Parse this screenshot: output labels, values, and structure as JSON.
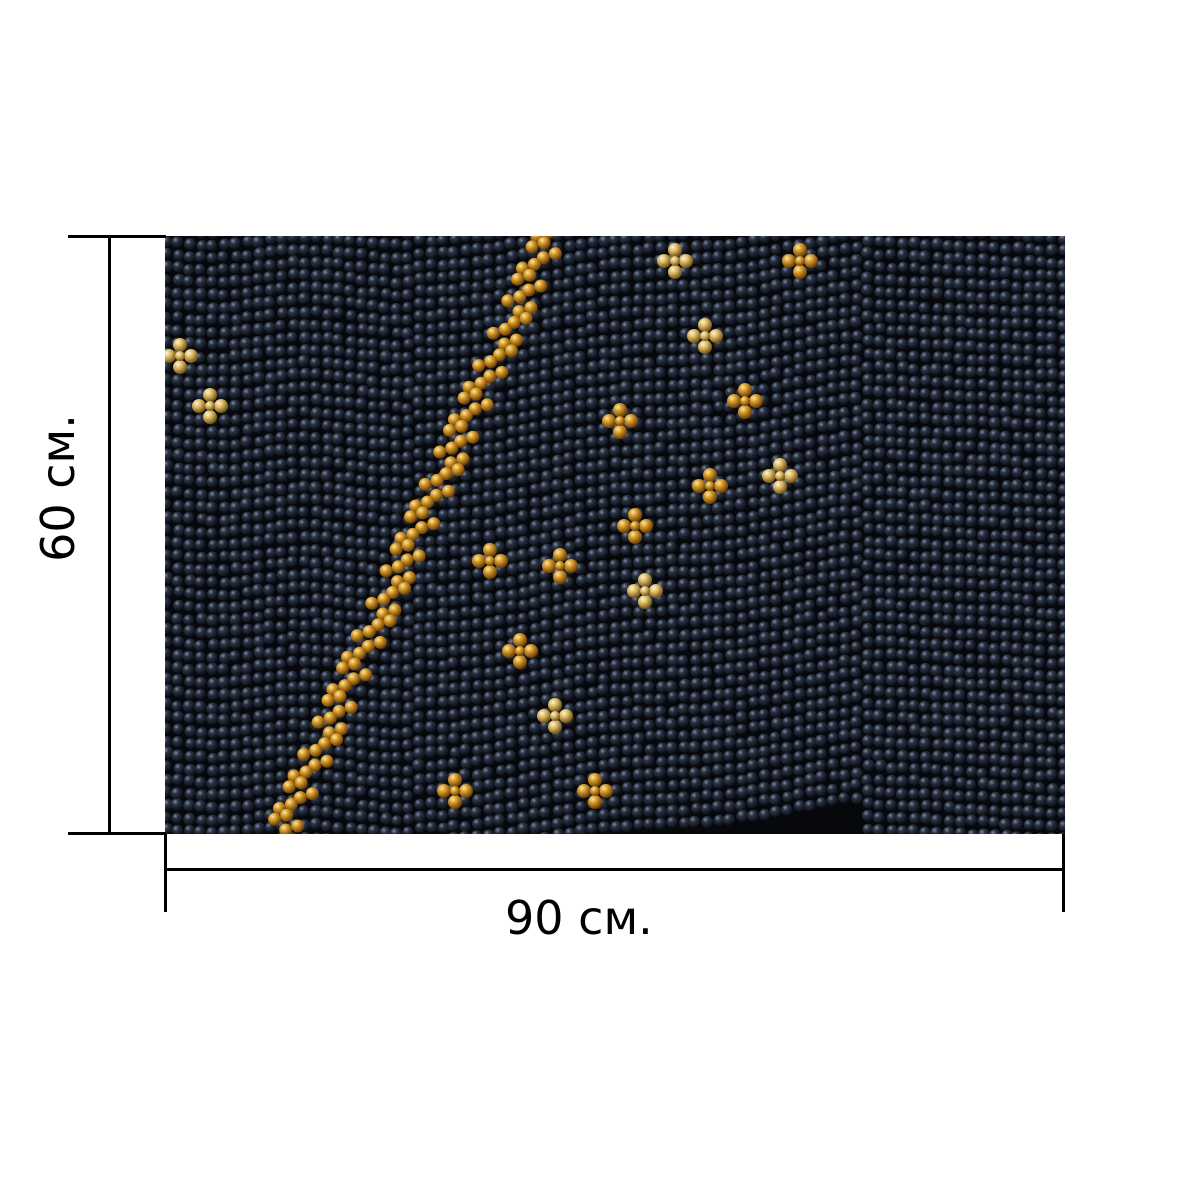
{
  "dimensions": {
    "width_label": "90 см.",
    "height_label": "60 см."
  },
  "photo": {
    "subject": "beadwork",
    "colors": {
      "background": "#07080c",
      "dark_bead": "#1c2433",
      "dark_bead_highlight": "#7d8aa0",
      "gold_bead": "#c98a1c",
      "gold_bead_light": "#e8c061"
    }
  }
}
